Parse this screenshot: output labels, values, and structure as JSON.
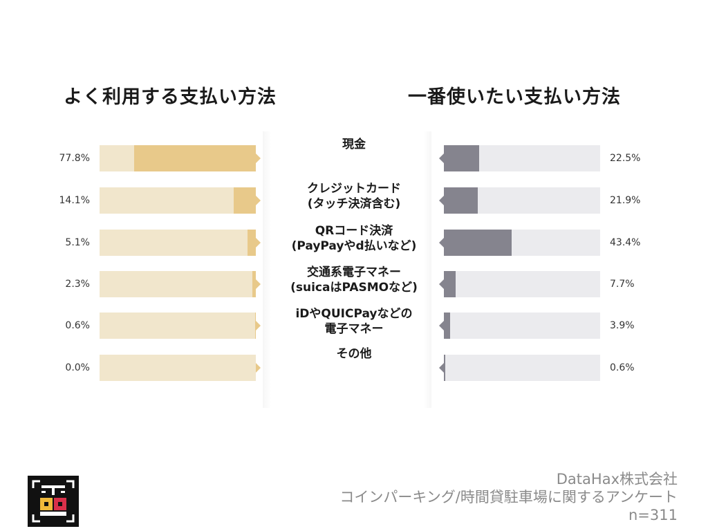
{
  "chart_data": {
    "type": "bar",
    "categories": [
      "現金",
      "クレジットカード\n(タッチ決済含む)",
      "QRコード決済\n(PayPayやd払いなど)",
      "交通系電子マネー\n(suicaはPASMOなど)",
      "iDやQUICPayなどの\n電子マネー",
      "その他"
    ],
    "series": [
      {
        "name": "よく利用する支払い方法",
        "values": [
          77.8,
          14.1,
          5.1,
          2.3,
          0.6,
          0.0
        ],
        "labels": [
          "77.8%",
          "14.1%",
          "5.1%",
          "2.3%",
          "0.6%",
          "0.0%"
        ],
        "color": "#e8c98a"
      },
      {
        "name": "一番使いたい支払い方法",
        "values": [
          22.5,
          21.9,
          43.4,
          7.7,
          3.9,
          0.6
        ],
        "labels": [
          "22.5%",
          "21.9%",
          "43.4%",
          "7.7%",
          "3.9%",
          "0.6%"
        ],
        "color": "#85848e"
      }
    ],
    "xlim": [
      0,
      100
    ],
    "legend": "none",
    "grid": false
  },
  "footer": {
    "company": "DataHax株式会社",
    "survey": "コインパーキング/時間貸駐車場に関するアンケート",
    "n": "n=311"
  },
  "logo": {
    "icon": "datahax-logo-icon",
    "colors": {
      "background": "#111111",
      "accent_yellow": "#f0b93a",
      "accent_red": "#d9304a"
    }
  }
}
